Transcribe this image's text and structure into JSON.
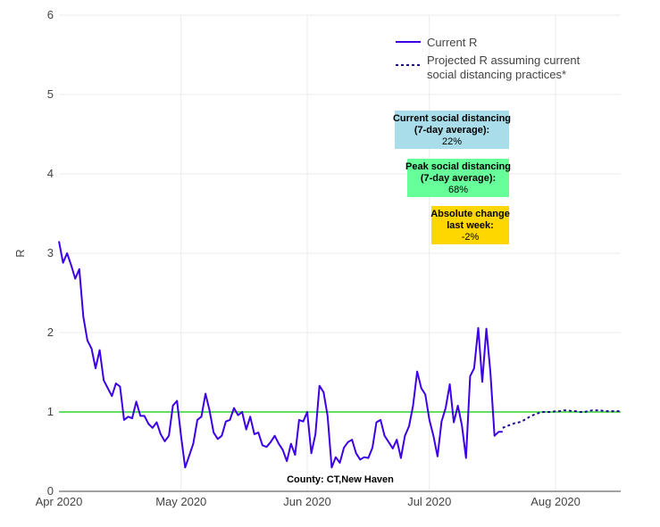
{
  "chart_data": {
    "type": "line",
    "title": "",
    "xlabel": "",
    "ylabel": "R",
    "ylim": [
      0,
      6
    ],
    "xlim": [
      "2020-04-01",
      "2020-08-17"
    ],
    "y_ticks": [
      "0",
      "1",
      "2",
      "3",
      "4",
      "5",
      "6"
    ],
    "x_ticks": [
      {
        "date": "2020-04-01",
        "label": "Apr 2020"
      },
      {
        "date": "2020-05-01",
        "label": "May 2020"
      },
      {
        "date": "2020-06-01",
        "label": "Jun 2020"
      },
      {
        "date": "2020-07-01",
        "label": "Jul 2020"
      },
      {
        "date": "2020-08-01",
        "label": "Aug 2020"
      }
    ],
    "grid": true,
    "legend_position": "top-right",
    "reference_line": {
      "y": 1,
      "color": "#66dd66"
    },
    "series": [
      {
        "name": "Current R",
        "color": "#3d00e6",
        "style": "solid",
        "x": [
          "2020-04-01",
          "2020-04-02",
          "2020-04-03",
          "2020-04-04",
          "2020-04-05",
          "2020-04-06",
          "2020-04-07",
          "2020-04-08",
          "2020-04-09",
          "2020-04-10",
          "2020-04-11",
          "2020-04-12",
          "2020-04-13",
          "2020-04-14",
          "2020-04-15",
          "2020-04-16",
          "2020-04-17",
          "2020-04-18",
          "2020-04-19",
          "2020-04-20",
          "2020-04-21",
          "2020-04-22",
          "2020-04-23",
          "2020-04-24",
          "2020-04-25",
          "2020-04-26",
          "2020-04-27",
          "2020-04-28",
          "2020-04-29",
          "2020-04-30",
          "2020-05-01",
          "2020-05-02",
          "2020-05-03",
          "2020-05-04",
          "2020-05-05",
          "2020-05-06",
          "2020-05-07",
          "2020-05-08",
          "2020-05-09",
          "2020-05-10",
          "2020-05-11",
          "2020-05-12",
          "2020-05-13",
          "2020-05-14",
          "2020-05-15",
          "2020-05-16",
          "2020-05-17",
          "2020-05-18",
          "2020-05-19",
          "2020-05-20",
          "2020-05-21",
          "2020-05-22",
          "2020-05-23",
          "2020-05-24",
          "2020-05-25",
          "2020-05-26",
          "2020-05-27",
          "2020-05-28",
          "2020-05-29",
          "2020-05-30",
          "2020-05-31",
          "2020-06-01",
          "2020-06-02",
          "2020-06-03",
          "2020-06-04",
          "2020-06-05",
          "2020-06-06",
          "2020-06-07",
          "2020-06-08",
          "2020-06-09",
          "2020-06-10",
          "2020-06-11",
          "2020-06-12",
          "2020-06-13",
          "2020-06-14",
          "2020-06-15",
          "2020-06-16",
          "2020-06-17",
          "2020-06-18",
          "2020-06-19",
          "2020-06-20",
          "2020-06-21",
          "2020-06-22",
          "2020-06-23",
          "2020-06-24",
          "2020-06-25",
          "2020-06-26",
          "2020-06-27",
          "2020-06-28",
          "2020-06-29",
          "2020-06-30",
          "2020-07-01",
          "2020-07-02",
          "2020-07-03",
          "2020-07-04",
          "2020-07-05",
          "2020-07-06",
          "2020-07-07",
          "2020-07-08",
          "2020-07-09",
          "2020-07-10",
          "2020-07-11",
          "2020-07-12",
          "2020-07-13",
          "2020-07-14",
          "2020-07-15",
          "2020-07-16",
          "2020-07-17",
          "2020-07-18",
          "2020-07-19"
        ],
        "y": [
          3.15,
          2.88,
          3.0,
          2.85,
          2.68,
          2.8,
          2.2,
          1.9,
          1.8,
          1.55,
          1.78,
          1.4,
          1.3,
          1.2,
          1.36,
          1.32,
          0.9,
          0.94,
          0.92,
          1.13,
          0.95,
          0.95,
          0.85,
          0.8,
          0.87,
          0.72,
          0.63,
          0.7,
          1.08,
          1.14,
          0.7,
          0.3,
          0.45,
          0.6,
          0.9,
          0.94,
          1.23,
          1.02,
          0.74,
          0.66,
          0.7,
          0.88,
          0.9,
          1.05,
          0.96,
          1.0,
          0.78,
          0.94,
          0.72,
          0.74,
          0.58,
          0.56,
          0.62,
          0.7,
          0.6,
          0.52,
          0.38,
          0.6,
          0.46,
          0.9,
          0.88,
          1.0,
          0.48,
          0.72,
          1.33,
          1.25,
          0.95,
          0.3,
          0.43,
          0.36,
          0.55,
          0.62,
          0.65,
          0.48,
          0.4,
          0.43,
          0.42,
          0.55,
          0.87,
          0.9,
          0.7,
          0.62,
          0.54,
          0.65,
          0.42,
          0.7,
          0.82,
          1.08,
          1.51,
          1.3,
          1.22,
          0.9,
          0.7,
          0.44,
          0.88,
          1.05,
          1.35,
          0.87,
          1.08,
          0.83,
          0.42,
          1.45,
          1.55,
          2.06,
          1.38,
          2.05,
          1.5,
          0.7,
          0.75,
          0.75
        ]
      },
      {
        "name": "Projected R assuming current social distancing practices*",
        "color": "#1a0a8c",
        "style": "dotted",
        "x": [
          "2020-07-19",
          "2020-07-20",
          "2020-07-21",
          "2020-07-22",
          "2020-07-23",
          "2020-07-24",
          "2020-07-25",
          "2020-07-26",
          "2020-07-27",
          "2020-07-28",
          "2020-07-29",
          "2020-07-30",
          "2020-07-31",
          "2020-08-01",
          "2020-08-02",
          "2020-08-03",
          "2020-08-04",
          "2020-08-05",
          "2020-08-06",
          "2020-08-07",
          "2020-08-08",
          "2020-08-09",
          "2020-08-10",
          "2020-08-11",
          "2020-08-12",
          "2020-08-13",
          "2020-08-14",
          "2020-08-15",
          "2020-08-16",
          "2020-08-17"
        ],
        "y": [
          0.8,
          0.82,
          0.84,
          0.86,
          0.87,
          0.89,
          0.92,
          0.95,
          0.97,
          0.99,
          1.0,
          1.0,
          1.0,
          1.01,
          1.01,
          1.02,
          1.02,
          1.01,
          1.01,
          1.0,
          1.0,
          1.01,
          1.02,
          1.02,
          1.02,
          1.01,
          1.01,
          1.01,
          1.01,
          1.01
        ]
      }
    ],
    "annotations": [
      {
        "title_line1": "Current social distancing",
        "title_line2": "(7-day average):",
        "value": "22%",
        "bg": "#a8dde9"
      },
      {
        "title_line1": "Peak social distancing",
        "title_line2": "(7-day average):",
        "value": "68%",
        "bg": "#66ff99"
      },
      {
        "title_line1": "Absolute change",
        "title_line2": "last week:",
        "value": "-2%",
        "bg": "#ffd700"
      }
    ],
    "footer_label": "County: CT,New Haven"
  }
}
